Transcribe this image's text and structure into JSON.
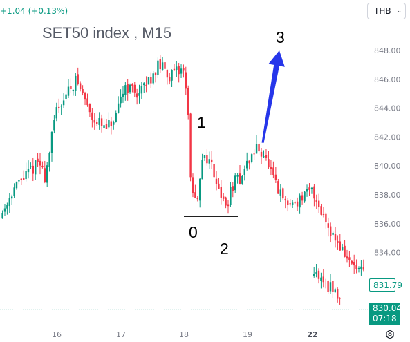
{
  "header": {
    "change_text": "+1.04 (+0.13%)",
    "currency": "THB"
  },
  "colors": {
    "up": "#089981",
    "down": "#f23645",
    "arrow": "#2636ea",
    "grid": "#f0f3fa"
  },
  "icons": {
    "currency_chevron": "chevron-down-icon",
    "settings": "gear-icon"
  },
  "wave_labels": {
    "l0": "0",
    "l1": "1",
    "l2": "2",
    "l3": "3"
  },
  "price_tags": {
    "last": "831.79",
    "current": "830.04",
    "countdown": "07:18"
  },
  "chart_data": {
    "type": "candlestick",
    "title": "SET50 index , M15",
    "y_axis": {
      "ticks": [
        834,
        836,
        838,
        840,
        842,
        844,
        846,
        848
      ],
      "tick_labels": [
        "834.00",
        "836.00",
        "838.00",
        "840.00",
        "842.00",
        "844.00",
        "846.00",
        "848.00"
      ],
      "range": [
        829.2,
        851.0
      ],
      "position": "right"
    },
    "x_axis": {
      "labels": [
        {
          "text": "16",
          "at": 16,
          "bold": false
        },
        {
          "text": "17",
          "at": 17,
          "bold": false
        },
        {
          "text": "18",
          "at": 18,
          "bold": false
        },
        {
          "text": "19",
          "at": 19,
          "bold": false
        },
        {
          "text": "22",
          "at": 22,
          "bold": true
        }
      ],
      "sessions": [
        15,
        16,
        17,
        18,
        19,
        22
      ]
    },
    "grid": false,
    "annotations": {
      "wave_points": [
        "0",
        "1",
        "2",
        "3"
      ],
      "support_line": 836.5,
      "arrow_from": 841.6,
      "arrow_to": 848.0,
      "current_price_line": 830.04
    },
    "anchors": [
      {
        "t": 15.0,
        "p": 835.6
      },
      {
        "t": 15.15,
        "p": 836.8
      },
      {
        "t": 15.3,
        "p": 838.3
      },
      {
        "t": 15.5,
        "p": 839.3
      },
      {
        "t": 15.72,
        "p": 840.3
      },
      {
        "t": 15.82,
        "p": 839.2
      },
      {
        "t": 16.0,
        "p": 844.0
      },
      {
        "t": 16.3,
        "p": 846.0
      },
      {
        "t": 16.55,
        "p": 843.5
      },
      {
        "t": 16.75,
        "p": 842.5
      },
      {
        "t": 16.92,
        "p": 843.2
      },
      {
        "t": 17.05,
        "p": 845.6
      },
      {
        "t": 17.3,
        "p": 845.0
      },
      {
        "t": 17.6,
        "p": 847.0
      },
      {
        "t": 17.8,
        "p": 846.2
      },
      {
        "t": 18.0,
        "p": 846.8
      },
      {
        "t": 18.06,
        "p": 844.0
      },
      {
        "t": 18.12,
        "p": 838.0
      },
      {
        "t": 18.22,
        "p": 837.3
      },
      {
        "t": 18.3,
        "p": 841.0
      },
      {
        "t": 18.42,
        "p": 840.2
      },
      {
        "t": 18.55,
        "p": 838.6
      },
      {
        "t": 18.65,
        "p": 837.0
      },
      {
        "t": 18.78,
        "p": 838.8
      },
      {
        "t": 18.9,
        "p": 839.2
      },
      {
        "t": 19.0,
        "p": 840.2
      },
      {
        "t": 19.15,
        "p": 841.3
      },
      {
        "t": 19.25,
        "p": 840.8
      },
      {
        "t": 19.45,
        "p": 838.4
      },
      {
        "t": 19.6,
        "p": 837.3
      },
      {
        "t": 19.78,
        "p": 837.6
      },
      {
        "t": 20.0,
        "p": 838.3
      },
      {
        "t": 20.18,
        "p": 836.5
      },
      {
        "t": 20.35,
        "p": 835.0
      },
      {
        "t": 20.6,
        "p": 833.2
      },
      {
        "t": 20.85,
        "p": 832.3
      },
      {
        "t": 21.05,
        "p": 832.5
      },
      {
        "t": 21.25,
        "p": 831.7
      },
      {
        "t": 21.35,
        "p": 831.2
      },
      {
        "t": 21.45,
        "p": 830.8
      }
    ]
  }
}
